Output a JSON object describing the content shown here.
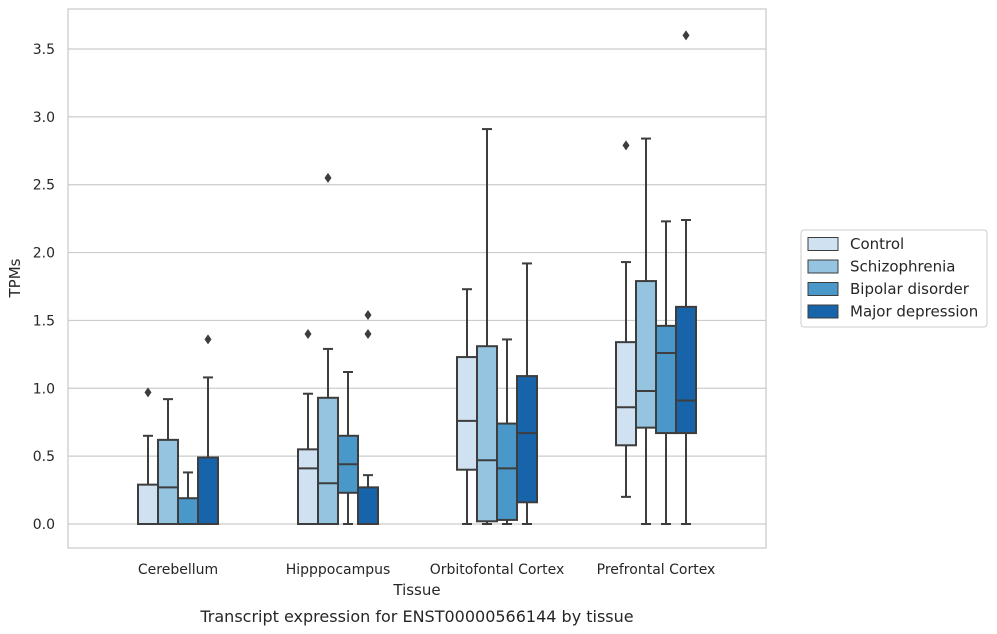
{
  "caption": "Transcript expression for ENST00000566144 by tissue",
  "colors": {
    "series": [
      "#d0e1f2",
      "#94c4df",
      "#4a98c9",
      "#1764ab"
    ],
    "edge": "#3d3d3d",
    "grid": "#cccccc",
    "frame": "#cccccc"
  },
  "chart_data": {
    "type": "box",
    "title": "",
    "xlabel": "Tissue",
    "ylabel": "TPMs",
    "ylim": [
      -0.17,
      3.8
    ],
    "yticks": [
      0.0,
      0.5,
      1.0,
      1.5,
      2.0,
      2.5,
      3.0,
      3.5
    ],
    "ytick_labels": [
      "0.0",
      "0.5",
      "1.0",
      "1.5",
      "2.0",
      "2.5",
      "3.0",
      "3.5"
    ],
    "grid": true,
    "legend_position": "right",
    "categories": [
      "Cerebellum",
      "Hipppocampus",
      "Orbitofontal Cortex",
      "Prefrontal Cortex"
    ],
    "series": [
      {
        "name": "Control",
        "boxes": [
          {
            "whisker_low": 0.0,
            "q1": 0.0,
            "median": 0.0,
            "q3": 0.29,
            "whisker_high": 0.65,
            "outliers": [
              0.97
            ]
          },
          {
            "whisker_low": 0.0,
            "q1": 0.0,
            "median": 0.41,
            "q3": 0.55,
            "whisker_high": 0.96,
            "outliers": [
              1.4
            ]
          },
          {
            "whisker_low": 0.0,
            "q1": 0.4,
            "median": 0.76,
            "q3": 1.23,
            "whisker_high": 1.73,
            "outliers": []
          },
          {
            "whisker_low": 0.2,
            "q1": 0.58,
            "median": 0.86,
            "q3": 1.34,
            "whisker_high": 1.93,
            "outliers": [
              2.79
            ]
          }
        ]
      },
      {
        "name": "Schizophrenia",
        "boxes": [
          {
            "whisker_low": 0.0,
            "q1": 0.0,
            "median": 0.27,
            "q3": 0.62,
            "whisker_high": 0.92,
            "outliers": []
          },
          {
            "whisker_low": 0.0,
            "q1": 0.0,
            "median": 0.3,
            "q3": 0.93,
            "whisker_high": 1.29,
            "outliers": [
              2.55
            ]
          },
          {
            "whisker_low": 0.0,
            "q1": 0.02,
            "median": 0.47,
            "q3": 1.31,
            "whisker_high": 2.91,
            "outliers": []
          },
          {
            "whisker_low": 0.0,
            "q1": 0.71,
            "median": 0.98,
            "q3": 1.79,
            "whisker_high": 2.84,
            "outliers": []
          }
        ]
      },
      {
        "name": "Bipolar disorder",
        "boxes": [
          {
            "whisker_low": 0.0,
            "q1": 0.0,
            "median": 0.0,
            "q3": 0.19,
            "whisker_high": 0.38,
            "outliers": []
          },
          {
            "whisker_low": 0.0,
            "q1": 0.23,
            "median": 0.44,
            "q3": 0.65,
            "whisker_high": 1.12,
            "outliers": []
          },
          {
            "whisker_low": 0.0,
            "q1": 0.03,
            "median": 0.41,
            "q3": 0.74,
            "whisker_high": 1.36,
            "outliers": []
          },
          {
            "whisker_low": 0.0,
            "q1": 0.67,
            "median": 1.26,
            "q3": 1.46,
            "whisker_high": 2.23,
            "outliers": []
          }
        ]
      },
      {
        "name": "Major depression",
        "boxes": [
          {
            "whisker_low": 0.0,
            "q1": 0.0,
            "median": 0.0,
            "q3": 0.49,
            "whisker_high": 1.08,
            "outliers": [
              1.36
            ]
          },
          {
            "whisker_low": 0.0,
            "q1": 0.0,
            "median": 0.0,
            "q3": 0.27,
            "whisker_high": 0.36,
            "outliers": [
              1.4,
              1.54
            ]
          },
          {
            "whisker_low": 0.0,
            "q1": 0.16,
            "median": 0.67,
            "q3": 1.09,
            "whisker_high": 1.92,
            "outliers": []
          },
          {
            "whisker_low": 0.0,
            "q1": 0.67,
            "median": 0.91,
            "q3": 1.6,
            "whisker_high": 2.24,
            "outliers": [
              3.6
            ]
          }
        ]
      }
    ]
  }
}
